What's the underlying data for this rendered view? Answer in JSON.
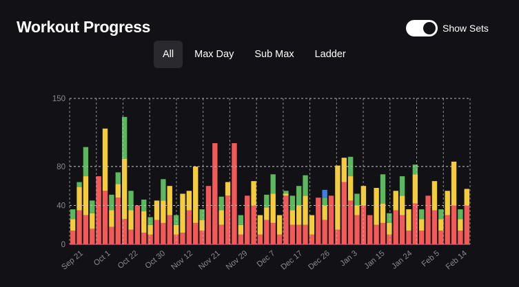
{
  "header": {
    "title": "Workout Progress",
    "toggle_label": "Show Sets",
    "toggle_on": true
  },
  "tabs": [
    {
      "label": "All",
      "active": true
    },
    {
      "label": "Max Day",
      "active": false
    },
    {
      "label": "Sub Max",
      "active": false
    },
    {
      "label": "Ladder",
      "active": false
    }
  ],
  "colors": {
    "red": "#f25a5a",
    "yellow": "#f5cc3c",
    "green": "#5cb85c",
    "blue": "#3f7fe0",
    "background": "#121216",
    "grid": "#c8c8c8",
    "tick_text": "#8a8a8e"
  },
  "chart_data": {
    "type": "bar",
    "stacked": true,
    "title": "",
    "xlabel": "",
    "ylabel": "",
    "ylim": [
      0,
      150
    ],
    "y_ticks": [
      0,
      40,
      80,
      150
    ],
    "x_tick_labels": [
      "Sep 21",
      "Oct 1",
      "Oct 22",
      "Oct 30",
      "Nov 12",
      "Nov 21",
      "Nov 29",
      "Dec 7",
      "Dec 17",
      "Dec 26",
      "Jan 3",
      "Jan 15",
      "Jan 24",
      "Feb 5",
      "Feb 14"
    ],
    "grid": true,
    "stacks": [
      [
        {
          "c": "red",
          "v": 14
        },
        {
          "c": "yellow",
          "v": 12
        },
        {
          "c": "green",
          "v": 10
        }
      ],
      [
        {
          "c": "red",
          "v": 35
        },
        {
          "c": "yellow",
          "v": 24
        },
        {
          "c": "green",
          "v": 5
        }
      ],
      [
        {
          "c": "red",
          "v": 30
        },
        {
          "c": "yellow",
          "v": 40
        },
        {
          "c": "green",
          "v": 30
        }
      ],
      [
        {
          "c": "red",
          "v": 16
        },
        {
          "c": "yellow",
          "v": 16
        },
        {
          "c": "green",
          "v": 13
        }
      ],
      [
        {
          "c": "red",
          "v": 70
        }
      ],
      [
        {
          "c": "red",
          "v": 55
        },
        {
          "c": "yellow",
          "v": 64
        }
      ],
      [
        {
          "c": "red",
          "v": 18
        },
        {
          "c": "yellow",
          "v": 17
        },
        {
          "c": "green",
          "v": 16
        }
      ],
      [
        {
          "c": "red",
          "v": 48
        },
        {
          "c": "yellow",
          "v": 14
        },
        {
          "c": "green",
          "v": 12
        }
      ],
      [
        {
          "c": "red",
          "v": 26
        },
        {
          "c": "yellow",
          "v": 62
        },
        {
          "c": "green",
          "v": 43
        }
      ],
      [
        {
          "c": "red",
          "v": 15
        },
        {
          "c": "yellow",
          "v": 20
        },
        {
          "c": "green",
          "v": 20
        }
      ],
      [
        {
          "c": "red",
          "v": 40
        }
      ],
      [
        {
          "c": "red",
          "v": 12
        },
        {
          "c": "yellow",
          "v": 22
        },
        {
          "c": "green",
          "v": 12
        }
      ],
      [
        {
          "c": "red",
          "v": 10
        },
        {
          "c": "yellow",
          "v": 10
        },
        {
          "c": "green",
          "v": 8
        }
      ],
      [
        {
          "c": "red",
          "v": 25
        },
        {
          "c": "yellow",
          "v": 20
        }
      ],
      [
        {
          "c": "red",
          "v": 22
        },
        {
          "c": "yellow",
          "v": 23
        },
        {
          "c": "green",
          "v": 22
        }
      ],
      [
        {
          "c": "red",
          "v": 30
        },
        {
          "c": "yellow",
          "v": 30
        }
      ],
      [
        {
          "c": "red",
          "v": 10
        },
        {
          "c": "yellow",
          "v": 10
        },
        {
          "c": "green",
          "v": 10
        }
      ],
      [
        {
          "c": "red",
          "v": 12
        },
        {
          "c": "yellow",
          "v": 40
        }
      ],
      [
        {
          "c": "red",
          "v": 35
        },
        {
          "c": "yellow",
          "v": 20
        }
      ],
      [
        {
          "c": "red",
          "v": 22
        },
        {
          "c": "yellow",
          "v": 58
        }
      ],
      [
        {
          "c": "red",
          "v": 14
        },
        {
          "c": "yellow",
          "v": 11
        },
        {
          "c": "green",
          "v": 11
        }
      ],
      [
        {
          "c": "red",
          "v": 60
        }
      ],
      [
        {
          "c": "red",
          "v": 104
        }
      ],
      [
        {
          "c": "red",
          "v": 20
        },
        {
          "c": "yellow",
          "v": 15
        },
        {
          "c": "green",
          "v": 14
        }
      ],
      [
        {
          "c": "red",
          "v": 50
        },
        {
          "c": "yellow",
          "v": 14
        }
      ],
      [
        {
          "c": "red",
          "v": 104
        }
      ],
      [
        {
          "c": "red",
          "v": 10
        },
        {
          "c": "yellow",
          "v": 10
        },
        {
          "c": "green",
          "v": 10
        }
      ],
      [
        {
          "c": "red",
          "v": 50
        }
      ],
      [
        {
          "c": "red",
          "v": 40
        },
        {
          "c": "yellow",
          "v": 25
        }
      ],
      [
        {
          "c": "red",
          "v": 10
        },
        {
          "c": "yellow",
          "v": 20
        }
      ],
      [
        {
          "c": "red",
          "v": 25
        },
        {
          "c": "yellow",
          "v": 13
        },
        {
          "c": "green",
          "v": 13
        }
      ],
      [
        {
          "c": "red",
          "v": 22
        },
        {
          "c": "yellow",
          "v": 30
        },
        {
          "c": "green",
          "v": 20
        }
      ],
      [
        {
          "c": "red",
          "v": 10
        },
        {
          "c": "yellow",
          "v": 20
        }
      ],
      [
        {
          "c": "red",
          "v": 50
        },
        {
          "c": "yellow",
          "v": 2
        },
        {
          "c": "green",
          "v": 3
        }
      ],
      [
        {
          "c": "red",
          "v": 20
        },
        {
          "c": "yellow",
          "v": 15
        },
        {
          "c": "green",
          "v": 15
        }
      ],
      [
        {
          "c": "red",
          "v": 20
        },
        {
          "c": "yellow",
          "v": 20
        },
        {
          "c": "green",
          "v": 20
        }
      ],
      [
        {
          "c": "red",
          "v": 20
        },
        {
          "c": "yellow",
          "v": 30
        },
        {
          "c": "green",
          "v": 21
        }
      ],
      [
        {
          "c": "red",
          "v": 10
        },
        {
          "c": "yellow",
          "v": 20
        }
      ],
      [
        {
          "c": "red",
          "v": 48
        }
      ],
      [
        {
          "c": "red",
          "v": 25
        },
        {
          "c": "yellow",
          "v": 15
        },
        {
          "c": "green",
          "v": 8
        },
        {
          "c": "blue",
          "v": 8
        }
      ],
      [
        {
          "c": "red",
          "v": 50
        }
      ],
      [
        {
          "c": "red",
          "v": 15
        },
        {
          "c": "yellow",
          "v": 66
        }
      ],
      [
        {
          "c": "red",
          "v": 64
        },
        {
          "c": "yellow",
          "v": 25
        }
      ],
      [
        {
          "c": "red",
          "v": 45
        },
        {
          "c": "yellow",
          "v": 25
        },
        {
          "c": "green",
          "v": 20
        }
      ],
      [
        {
          "c": "red",
          "v": 30
        },
        {
          "c": "yellow",
          "v": 10
        },
        {
          "c": "green",
          "v": 12
        }
      ],
      [
        {
          "c": "red",
          "v": 40
        },
        {
          "c": "yellow",
          "v": 20
        }
      ],
      [
        {
          "c": "red",
          "v": 30
        }
      ],
      [
        {
          "c": "red",
          "v": 20
        },
        {
          "c": "yellow",
          "v": 38
        }
      ],
      [
        {
          "c": "red",
          "v": 22
        },
        {
          "c": "yellow",
          "v": 20
        },
        {
          "c": "green",
          "v": 30
        }
      ],
      [
        {
          "c": "red",
          "v": 10
        },
        {
          "c": "yellow",
          "v": 12
        },
        {
          "c": "green",
          "v": 10
        }
      ],
      [
        {
          "c": "red",
          "v": 35
        },
        {
          "c": "yellow",
          "v": 20
        }
      ],
      [
        {
          "c": "red",
          "v": 30
        },
        {
          "c": "yellow",
          "v": 20
        },
        {
          "c": "green",
          "v": 20
        }
      ],
      [
        {
          "c": "red",
          "v": 14
        },
        {
          "c": "yellow",
          "v": 22
        }
      ],
      [
        {
          "c": "red",
          "v": 42
        },
        {
          "c": "yellow",
          "v": 30
        },
        {
          "c": "green",
          "v": 10
        }
      ],
      [
        {
          "c": "red",
          "v": 14
        },
        {
          "c": "yellow",
          "v": 12
        },
        {
          "c": "green",
          "v": 10
        }
      ],
      [
        {
          "c": "red",
          "v": 50
        }
      ],
      [
        {
          "c": "red",
          "v": 35
        },
        {
          "c": "yellow",
          "v": 30
        }
      ],
      [
        {
          "c": "red",
          "v": 14
        },
        {
          "c": "yellow",
          "v": 12
        },
        {
          "c": "green",
          "v": 10
        }
      ],
      [
        {
          "c": "red",
          "v": 30
        },
        {
          "c": "yellow",
          "v": 25
        }
      ],
      [
        {
          "c": "red",
          "v": 40
        },
        {
          "c": "yellow",
          "v": 45
        }
      ],
      [
        {
          "c": "red",
          "v": 14
        },
        {
          "c": "yellow",
          "v": 12
        },
        {
          "c": "green",
          "v": 10
        }
      ],
      [
        {
          "c": "red",
          "v": 40
        },
        {
          "c": "yellow",
          "v": 17
        }
      ]
    ]
  }
}
